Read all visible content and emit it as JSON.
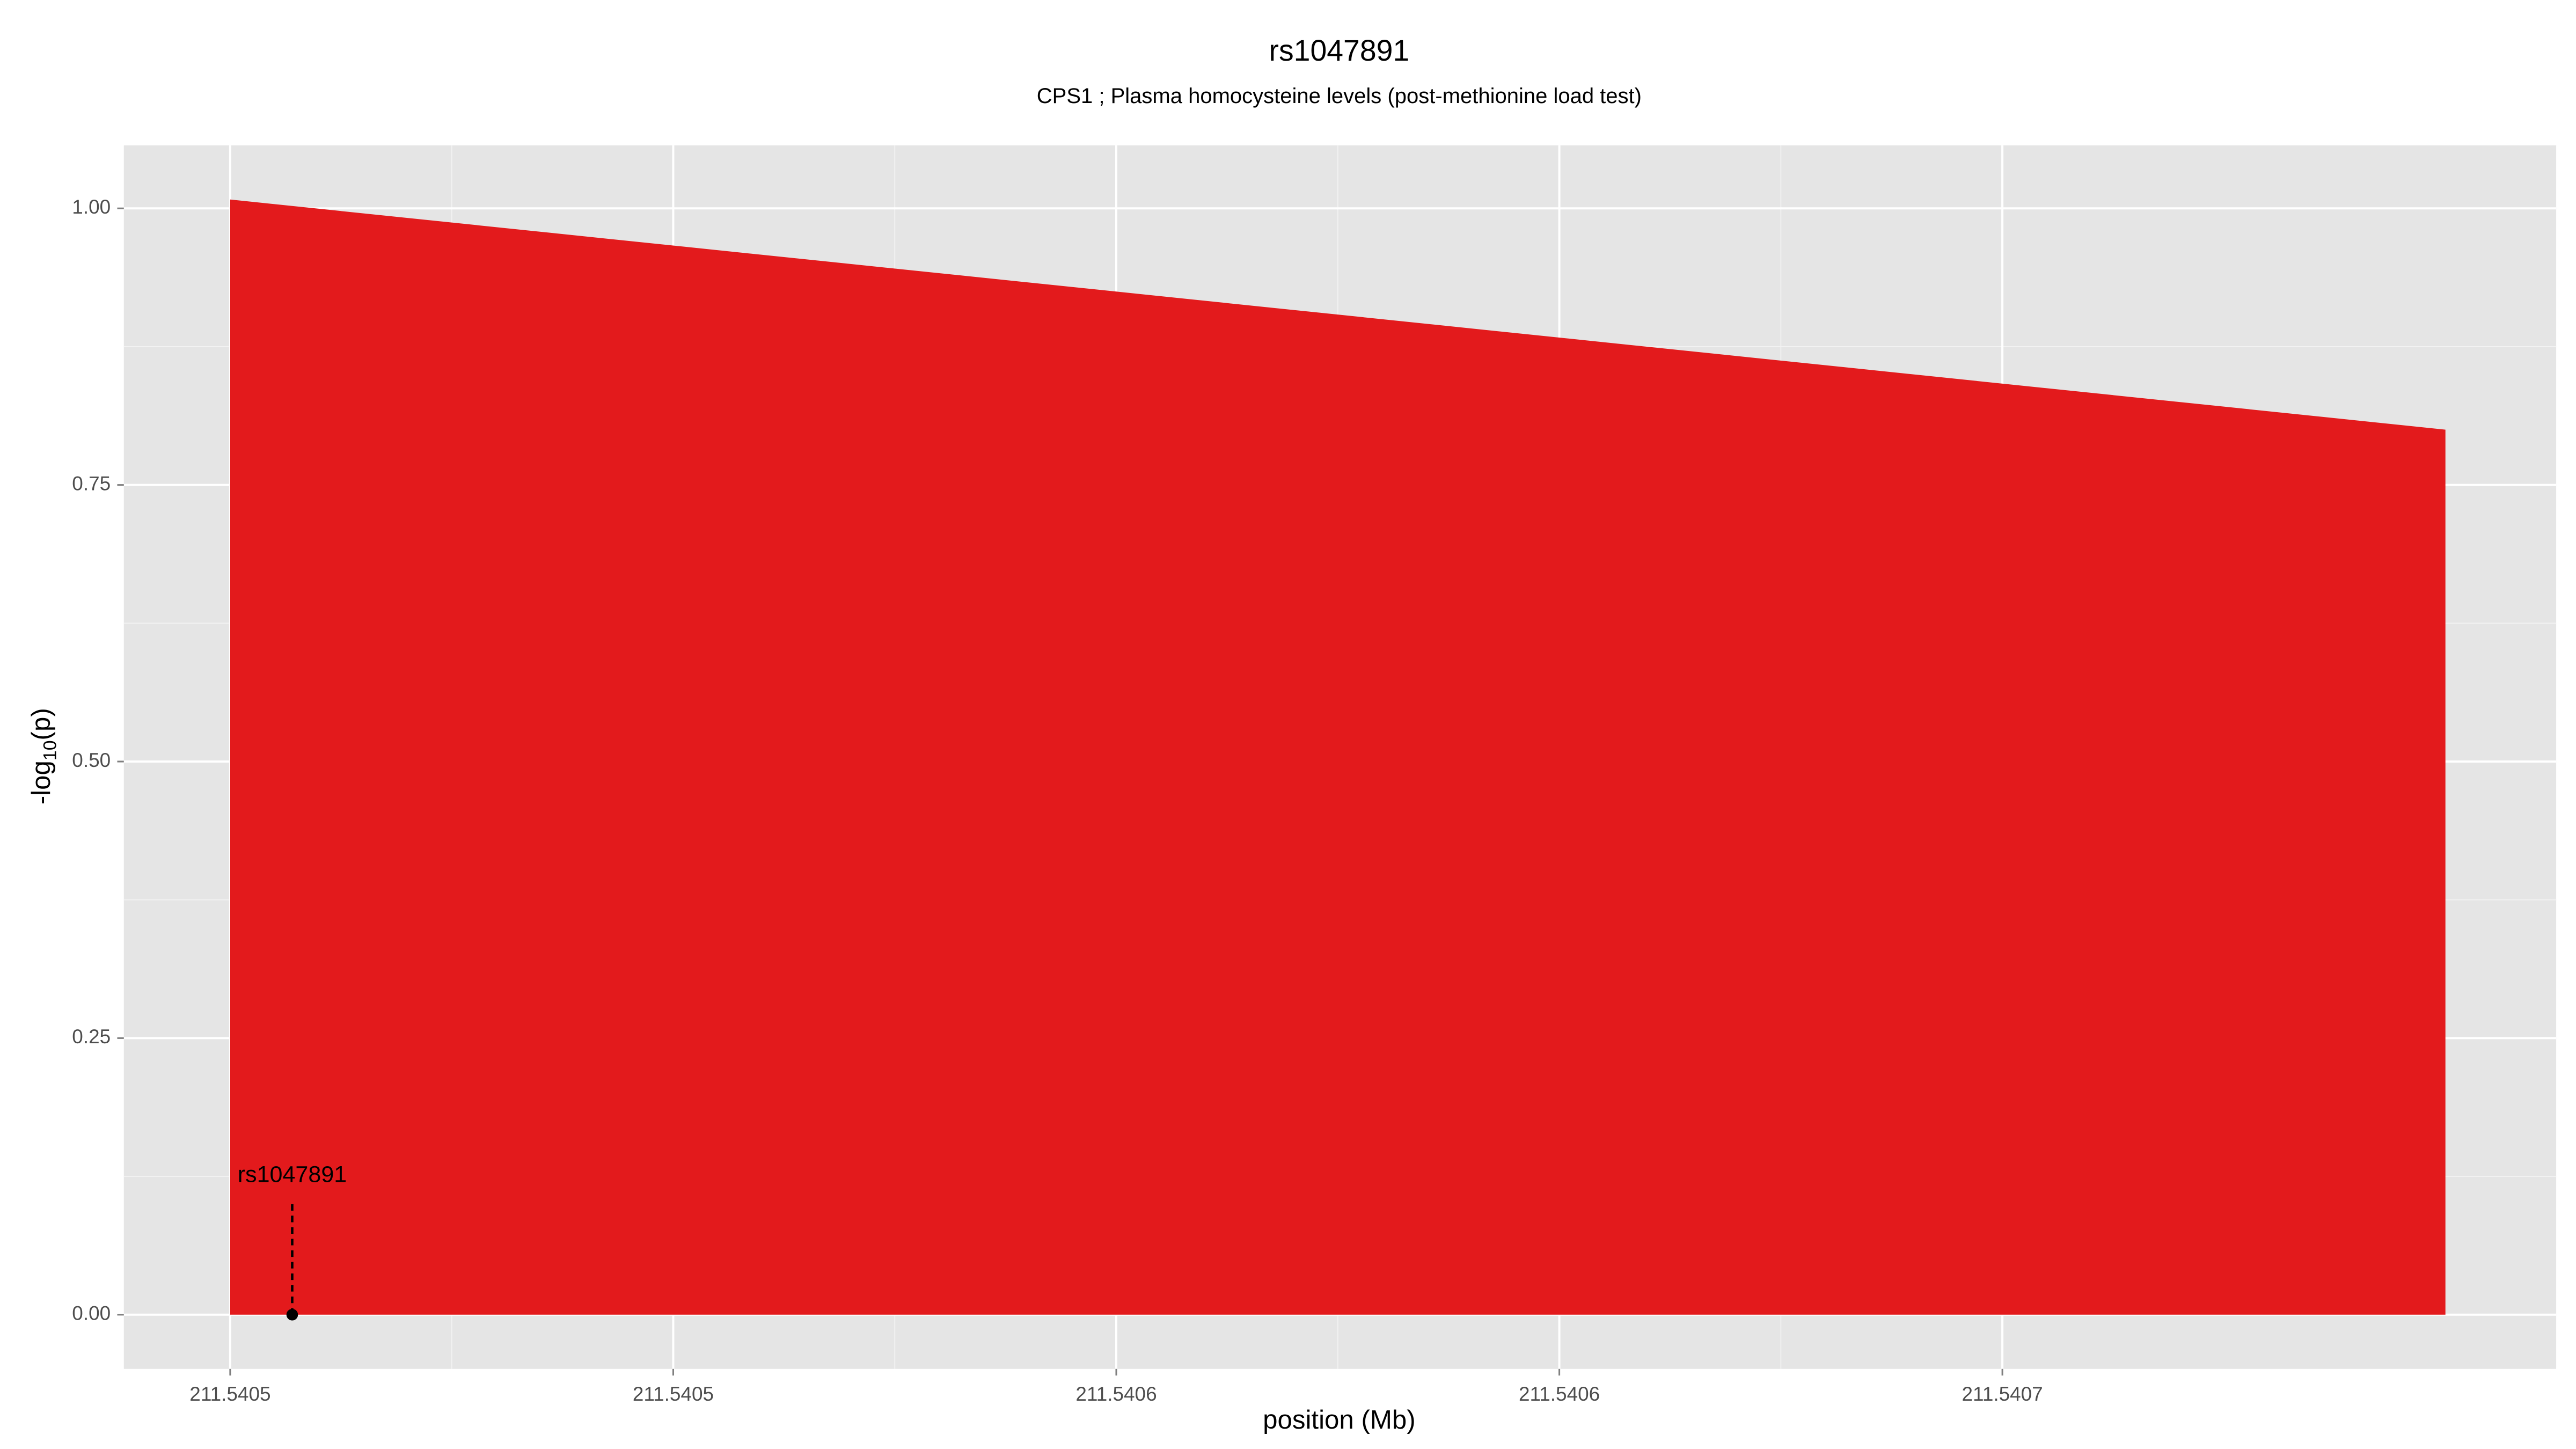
{
  "chart_data": {
    "type": "area",
    "title": "rs1047891",
    "subtitle": "CPS1 ; Plasma homocysteine levels (post-methionine load test)",
    "x_label": "position (Mb)",
    "y_label": [
      "-log",
      "10",
      "(p)"
    ],
    "series": [
      {
        "name": "rs1047891",
        "color": "#e31a1c",
        "x": [
          211.5405,
          211.54075
        ],
        "values": [
          1.008,
          0.8
        ]
      }
    ],
    "highlight": {
      "name": "rs1047891",
      "x": 211.540507,
      "y": 0
    },
    "xlim": [
      211.540488,
      211.5407625
    ],
    "ylim": [
      -0.049,
      1.057
    ],
    "xticks": [
      {
        "value": 211.5405,
        "label": "211.5405"
      },
      {
        "value": 211.54055,
        "label": "211.5405"
      },
      {
        "value": 211.5406,
        "label": "211.5406"
      },
      {
        "value": 211.54065,
        "label": "211.5406"
      },
      {
        "value": 211.5407,
        "label": "211.5407"
      }
    ],
    "yticks": [
      {
        "value": 0,
        "label": "0.00"
      },
      {
        "value": 0.25,
        "label": "0.25"
      },
      {
        "value": 0.5,
        "label": "0.50"
      },
      {
        "value": 0.75,
        "label": "0.75"
      },
      {
        "value": 1,
        "label": "1.00"
      }
    ],
    "grid": true
  }
}
